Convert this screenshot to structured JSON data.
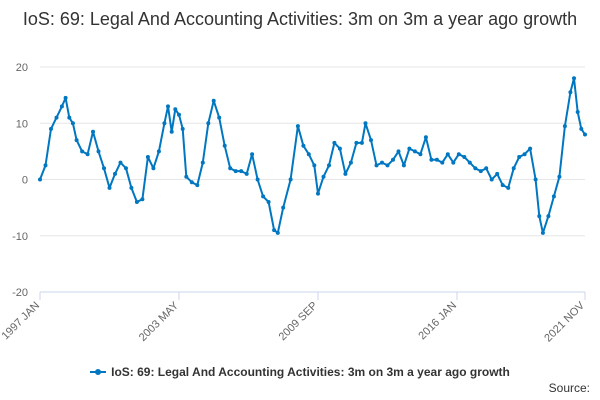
{
  "title": "IoS: 69: Legal And Accounting Activities: 3m on 3m a year ago growth",
  "source_label": "Source:",
  "colors": {
    "series": "#0077c0",
    "grid": "#e6e6e6",
    "axis": "#ccd6eb"
  },
  "chart_data": {
    "type": "line",
    "title": "IoS: 69: Legal And Accounting Activities: 3m on 3m a year ago growth",
    "ylim": [
      -20,
      20
    ],
    "y_ticks": [
      20,
      10,
      0,
      -10,
      -20
    ],
    "x_range": [
      "1997-01",
      "2021-11"
    ],
    "x_tick_labels": [
      {
        "date": "1997-01",
        "label": "1997 JAN"
      },
      {
        "date": "2003-05",
        "label": "2003 MAY"
      },
      {
        "date": "2009-09",
        "label": "2009 SEP"
      },
      {
        "date": "2016-01",
        "label": "2016 JAN"
      },
      {
        "date": "2021-11",
        "label": "2021 NOV"
      }
    ],
    "grid": true,
    "legend_position": "bottom",
    "series": [
      {
        "name": "IoS: 69: Legal And Accounting Activities: 3m on 3m a year ago growth",
        "points": [
          [
            "1997-01",
            0
          ],
          [
            "1997-04",
            2.5
          ],
          [
            "1997-07",
            9
          ],
          [
            "1997-10",
            11
          ],
          [
            "1998-01",
            13
          ],
          [
            "1998-03",
            14.5
          ],
          [
            "1998-05",
            11
          ],
          [
            "1998-07",
            10
          ],
          [
            "1998-09",
            7
          ],
          [
            "1998-12",
            5
          ],
          [
            "1999-03",
            4.5
          ],
          [
            "1999-06",
            8.5
          ],
          [
            "1999-09",
            5
          ],
          [
            "1999-12",
            2
          ],
          [
            "2000-03",
            -1.5
          ],
          [
            "2000-06",
            1
          ],
          [
            "2000-09",
            3
          ],
          [
            "2000-12",
            2
          ],
          [
            "2001-03",
            -1.5
          ],
          [
            "2001-06",
            -4
          ],
          [
            "2001-09",
            -3.5
          ],
          [
            "2001-12",
            4
          ],
          [
            "2002-03",
            2
          ],
          [
            "2002-06",
            5
          ],
          [
            "2002-09",
            10
          ],
          [
            "2002-11",
            13
          ],
          [
            "2003-01",
            8.5
          ],
          [
            "2003-03",
            12.5
          ],
          [
            "2003-05",
            11.5
          ],
          [
            "2003-07",
            9
          ],
          [
            "2003-09",
            0.5
          ],
          [
            "2003-12",
            -0.5
          ],
          [
            "2004-03",
            -1
          ],
          [
            "2004-06",
            3
          ],
          [
            "2004-09",
            10
          ],
          [
            "2004-12",
            14
          ],
          [
            "2005-03",
            11
          ],
          [
            "2005-06",
            6
          ],
          [
            "2005-09",
            2
          ],
          [
            "2005-12",
            1.5
          ],
          [
            "2006-03",
            1.5
          ],
          [
            "2006-06",
            1
          ],
          [
            "2006-09",
            4.5
          ],
          [
            "2006-12",
            0
          ],
          [
            "2007-03",
            -3
          ],
          [
            "2007-06",
            -4
          ],
          [
            "2007-09",
            -9
          ],
          [
            "2007-11",
            -9.5
          ],
          [
            "2008-02",
            -5
          ],
          [
            "2008-06",
            0
          ],
          [
            "2008-10",
            9.5
          ],
          [
            "2009-01",
            6
          ],
          [
            "2009-04",
            4.5
          ],
          [
            "2009-07",
            2.5
          ],
          [
            "2009-09",
            -2.5
          ],
          [
            "2009-12",
            0.5
          ],
          [
            "2010-03",
            2.5
          ],
          [
            "2010-06",
            6.5
          ],
          [
            "2010-09",
            5.5
          ],
          [
            "2010-12",
            1
          ],
          [
            "2011-03",
            3
          ],
          [
            "2011-06",
            6.5
          ],
          [
            "2011-09",
            6.5
          ],
          [
            "2011-11",
            10
          ],
          [
            "2012-02",
            7
          ],
          [
            "2012-05",
            2.5
          ],
          [
            "2012-08",
            3
          ],
          [
            "2012-11",
            2.5
          ],
          [
            "2013-02",
            3.5
          ],
          [
            "2013-05",
            5
          ],
          [
            "2013-08",
            2.5
          ],
          [
            "2013-11",
            5.5
          ],
          [
            "2014-02",
            5
          ],
          [
            "2014-05",
            4.5
          ],
          [
            "2014-08",
            7.5
          ],
          [
            "2014-11",
            3.5
          ],
          [
            "2015-02",
            3.5
          ],
          [
            "2015-05",
            3
          ],
          [
            "2015-08",
            4.5
          ],
          [
            "2015-11",
            3
          ],
          [
            "2016-02",
            4.5
          ],
          [
            "2016-05",
            4
          ],
          [
            "2016-08",
            3
          ],
          [
            "2016-11",
            2
          ],
          [
            "2017-02",
            1.5
          ],
          [
            "2017-05",
            2
          ],
          [
            "2017-08",
            0
          ],
          [
            "2017-11",
            1
          ],
          [
            "2018-02",
            -1
          ],
          [
            "2018-05",
            -1.5
          ],
          [
            "2018-08",
            2
          ],
          [
            "2018-11",
            4
          ],
          [
            "2019-02",
            4.5
          ],
          [
            "2019-05",
            5.5
          ],
          [
            "2019-08",
            0
          ],
          [
            "2019-10",
            -6.5
          ],
          [
            "2019-12",
            -9.5
          ],
          [
            "2020-03",
            -6.5
          ],
          [
            "2020-06",
            -3
          ],
          [
            "2020-09",
            0.5
          ],
          [
            "2020-12",
            9.5
          ],
          [
            "2021-03",
            15.5
          ],
          [
            "2021-05",
            18
          ],
          [
            "2021-07",
            12
          ],
          [
            "2021-09",
            9
          ],
          [
            "2021-11",
            8
          ]
        ]
      }
    ]
  }
}
